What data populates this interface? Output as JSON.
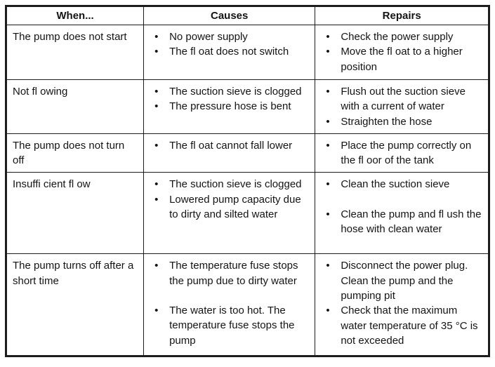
{
  "page": {
    "background": "#ffffff",
    "border_color": "#1c1c1c",
    "text_color": "#141414"
  },
  "table": {
    "headers": [
      {
        "label": "When..."
      },
      {
        "label": "Causes"
      },
      {
        "label": "Repairs"
      }
    ],
    "rows": [
      {
        "when": "The pump does not start",
        "causes": [
          {
            "text": "No power supply"
          },
          {
            "text": "The fl oat does not switch"
          }
        ],
        "repairs": [
          {
            "text": "Check the power supply"
          },
          {
            "text": "Move the fl oat to a higher position"
          }
        ]
      },
      {
        "when": "Not fl owing",
        "causes": [
          {
            "text": "The suction sieve is clogged"
          },
          {
            "text": "The pressure hose is bent"
          }
        ],
        "repairs": [
          {
            "text": "Flush out the suction sieve with a current of water"
          },
          {
            "text": "Straighten the hose"
          }
        ]
      },
      {
        "when": "The pump does not turn off",
        "causes": [
          {
            "text": "The fl oat cannot fall lower"
          }
        ],
        "repairs": [
          {
            "text": "Place the pump correctly on the fl oor of the tank"
          }
        ]
      },
      {
        "when": "Insuffi cient fl ow",
        "causes": [
          {
            "text": "The suction sieve is clogged"
          },
          {
            "text": "Lowered pump capacity due to dirty and silted water"
          }
        ],
        "repairs": [
          {
            "text": "Clean the suction sieve"
          },
          {
            "text": "Clean the pump and fl ush the hose with clean water",
            "gap_before": true
          }
        ]
      },
      {
        "when": "The pump turns off after a short time",
        "causes": [
          {
            "text": "The temperature fuse stops the pump due to dirty water"
          },
          {
            "text": "The water is too hot. The temperature fuse stops the pump",
            "gap_before": true
          }
        ],
        "repairs": [
          {
            "text": "Disconnect the power plug. Clean the pump and the pumping pit"
          },
          {
            "text": "Check that the maximum water temperature of 35 °C is not exceeded"
          }
        ]
      }
    ]
  }
}
